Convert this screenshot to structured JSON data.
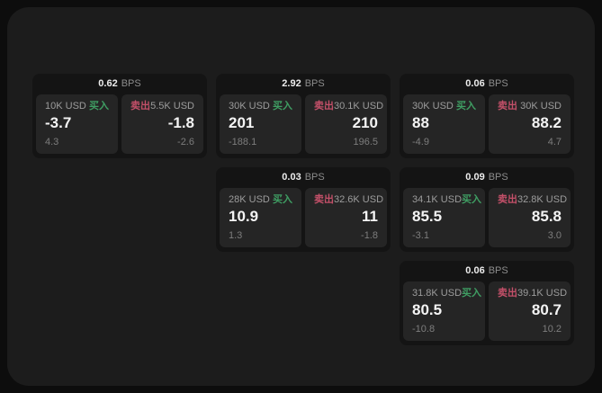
{
  "labels": {
    "bps_unit": "BPS",
    "buy": "买入",
    "sell": "卖出"
  },
  "colors": {
    "buy": "#3f9e63",
    "sell": "#c35069",
    "window_bg": "#1c1c1c",
    "card_bg": "#141414",
    "panel_bg": "#252525"
  },
  "cards": [
    {
      "bps": "0.62",
      "buy": {
        "amount": "10K USD",
        "price": "-3.7",
        "change": "4.3"
      },
      "sell": {
        "amount": "5.5K USD",
        "price": "-1.8",
        "change": "-2.6"
      }
    },
    {
      "bps": "2.92",
      "buy": {
        "amount": "30K USD",
        "price": "201",
        "change": "-188.1"
      },
      "sell": {
        "amount": "30.1K USD",
        "price": "210",
        "change": "196.5"
      }
    },
    {
      "bps": "0.06",
      "buy": {
        "amount": "30K USD",
        "price": "88",
        "change": "-4.9"
      },
      "sell": {
        "amount": "30K USD",
        "price": "88.2",
        "change": "4.7"
      }
    },
    {
      "bps": "0.03",
      "buy": {
        "amount": "28K USD",
        "price": "10.9",
        "change": "1.3"
      },
      "sell": {
        "amount": "32.6K USD",
        "price": "11",
        "change": "-1.8"
      }
    },
    {
      "bps": "0.09",
      "buy": {
        "amount": "34.1K USD",
        "price": "85.5",
        "change": "-3.1"
      },
      "sell": {
        "amount": "32.8K USD",
        "price": "85.8",
        "change": "3.0"
      }
    },
    {
      "bps": "0.06",
      "buy": {
        "amount": "31.8K USD",
        "price": "80.5",
        "change": "-10.8"
      },
      "sell": {
        "amount": "39.1K USD",
        "price": "80.7",
        "change": "10.2"
      }
    }
  ]
}
